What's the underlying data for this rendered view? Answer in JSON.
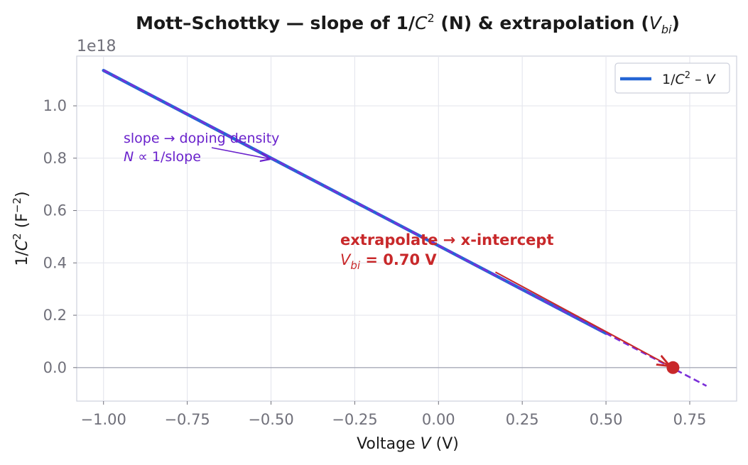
{
  "chart_data": {
    "type": "line",
    "title_prefix": "Mott–Schottky — slope of 1/",
    "title_mid": "C",
    "title_sup": "2",
    "title_after": " (N) & extrapolation (",
    "title_v": "V",
    "title_sub": "bi",
    "title_end": ")",
    "xlabel_pre": "Voltage  ",
    "xlabel_v": "V",
    "xlabel_post": "  (V)",
    "ylabel_pre": "1/",
    "ylabel_c": "C",
    "ylabel_sup": "2",
    "ylabel_post": "  (F",
    "ylabel_sup2": "−2",
    "ylabel_end": ")",
    "y_offset_text": "1e18",
    "xlim": [
      -1.08,
      0.89
    ],
    "ylim": [
      -0.128,
      1.19
    ],
    "y_scale": 1e+18,
    "x_ticks": [
      -1.0,
      -0.75,
      -0.5,
      -0.25,
      0.0,
      0.25,
      0.5,
      0.75
    ],
    "x_tick_labels": [
      "−1.00",
      "−0.75",
      "−0.50",
      "−0.25",
      "0.00",
      "0.25",
      "0.50",
      "0.75"
    ],
    "y_ticks": [
      0.0,
      0.2,
      0.4,
      0.6,
      0.8,
      1.0
    ],
    "y_tick_labels": [
      "0.0",
      "0.2",
      "0.4",
      "0.6",
      "0.8",
      "1.0"
    ],
    "grid": true,
    "legend_placement": "top-right",
    "series": [
      {
        "name_pre": "1/",
        "name_c": "C",
        "name_sup": "2",
        "name_post": " – ",
        "name_v": "V",
        "color": "#2565d4",
        "x": [
          -1.0,
          0.5
        ],
        "y": [
          1.135,
          0.131
        ]
      }
    ],
    "fit_line": {
      "x": [
        -1.0,
        0.8
      ],
      "y": [
        1.136,
        -0.07
      ],
      "color": "#7a2ed8",
      "style": "dashed"
    },
    "intercept_point": {
      "x": 0.7,
      "y": 0.0,
      "color": "#c8282a"
    },
    "annotations": {
      "slope_line1": "slope → doping density",
      "slope_n": "N",
      "slope_line2_rest": " ∝ 1/slope",
      "slope_arrow_tip": {
        "x": -0.5,
        "y": 0.8
      },
      "extrap_line1": "extrapolate → x-intercept",
      "extrap_v": "V",
      "extrap_sub": "bi",
      "extrap_rest": " = 0.70 V",
      "extrap_arrow_start": {
        "x": 0.17,
        "y": 0.365
      }
    },
    "colors": {
      "series": "#2565d4",
      "fit": "#7a2ed8",
      "accent": "#c8282a",
      "annotation": "#6a22cc"
    }
  }
}
